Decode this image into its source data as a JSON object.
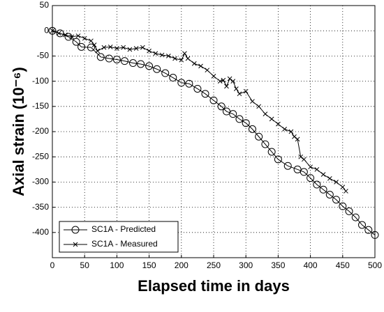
{
  "chart_data": {
    "type": "line",
    "xlabel": "Elapsed time in days",
    "ylabel": "Axial strain (10⁻⁶)",
    "xlim": [
      0,
      500
    ],
    "xticks": [
      0,
      50,
      100,
      150,
      200,
      250,
      300,
      350,
      400,
      450,
      500
    ],
    "ylim": [
      -450,
      50
    ],
    "yticks": [
      50,
      0,
      -50,
      -100,
      -150,
      -200,
      -250,
      -300,
      -350,
      -400
    ],
    "grid": true,
    "legend": "lower left",
    "series": [
      {
        "name": "SC1A - Predicted",
        "color": "#000000",
        "marker": "circle",
        "x": [
          0,
          12,
          25,
          37,
          45,
          60,
          75,
          88,
          100,
          112,
          125,
          137,
          150,
          162,
          175,
          187,
          200,
          212,
          225,
          237,
          250,
          262,
          270,
          280,
          290,
          300,
          310,
          320,
          330,
          340,
          350,
          365,
          380,
          390,
          400,
          410,
          420,
          430,
          440,
          450,
          460,
          470,
          480,
          490,
          500
        ],
        "values": [
          0,
          -5,
          -12,
          -22,
          -32,
          -33,
          -52,
          -55,
          -57,
          -60,
          -64,
          -66,
          -70,
          -76,
          -84,
          -93,
          -103,
          -105,
          -115,
          -125,
          -138,
          -150,
          -160,
          -165,
          -175,
          -183,
          -195,
          -210,
          -225,
          -240,
          -255,
          -268,
          -275,
          -280,
          -292,
          -305,
          -315,
          -325,
          -335,
          -348,
          -358,
          -370,
          -385,
          -395,
          -405
        ]
      },
      {
        "name": "SC1A - Measured",
        "color": "#000000",
        "marker": "x",
        "x": [
          0,
          10,
          20,
          30,
          40,
          50,
          60,
          65,
          70,
          80,
          90,
          100,
          110,
          120,
          130,
          140,
          150,
          160,
          170,
          180,
          190,
          200,
          205,
          210,
          220,
          230,
          240,
          250,
          260,
          265,
          270,
          275,
          280,
          285,
          290,
          300,
          310,
          320,
          330,
          340,
          350,
          360,
          370,
          375,
          380,
          385,
          390,
          400,
          410,
          420,
          430,
          440,
          450,
          455
        ],
        "values": [
          0,
          -5,
          -8,
          -12,
          -10,
          -15,
          -20,
          -28,
          -40,
          -33,
          -32,
          -35,
          -33,
          -37,
          -35,
          -33,
          -40,
          -45,
          -48,
          -50,
          -55,
          -58,
          -45,
          -55,
          -65,
          -70,
          -78,
          -90,
          -100,
          -98,
          -110,
          -95,
          -100,
          -115,
          -125,
          -120,
          -140,
          -150,
          -165,
          -175,
          -185,
          -195,
          -200,
          -210,
          -215,
          -250,
          -255,
          -270,
          -275,
          -285,
          -293,
          -300,
          -310,
          -318
        ]
      }
    ]
  }
}
